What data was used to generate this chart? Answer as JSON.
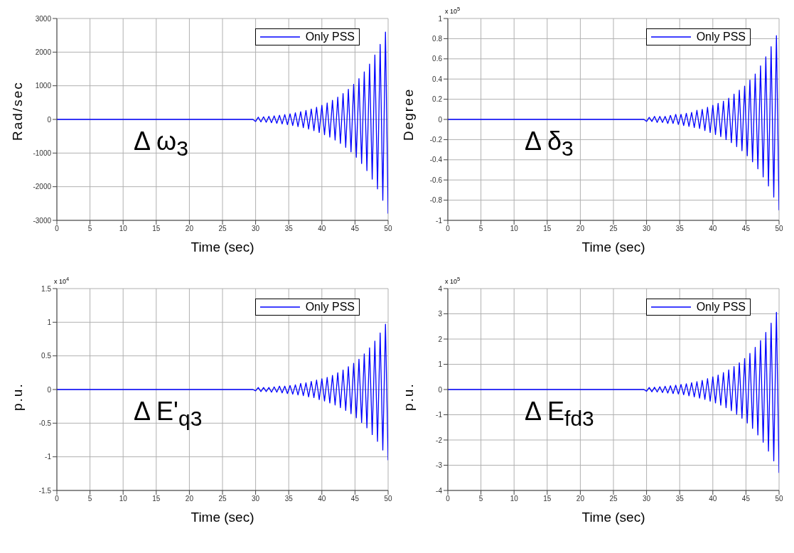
{
  "chart_data": [
    {
      "type": "line",
      "xlabel": "Time (sec)",
      "ylabel": "Rad/sec",
      "annotations": [
        "Δ ω$_{3}$"
      ],
      "x": [
        0,
        29.6,
        30,
        30.4,
        30.8,
        31.2,
        31.6,
        32,
        32.4,
        32.8,
        33.2,
        33.6,
        34,
        34.4,
        34.8,
        35.2,
        35.6,
        36,
        36.4,
        36.8,
        37.2,
        37.6,
        38,
        38.4,
        38.8,
        39.2,
        39.6,
        40,
        40.4,
        40.8,
        41.2,
        41.6,
        42,
        42.4,
        42.8,
        43.2,
        43.6,
        44,
        44.4,
        44.8,
        45.2,
        45.6,
        46,
        46.4,
        46.8,
        47.2,
        47.6,
        48,
        48.4,
        48.8,
        49.2,
        49.6,
        50
      ],
      "series": [
        {
          "name": "Only PSS",
          "color": "#0000ff",
          "values": [
            0,
            0,
            -62,
            67,
            -73,
            78,
            -84,
            92,
            -98,
            106,
            -115,
            123,
            -134,
            146,
            -157,
            168,
            -182,
            196,
            -213,
            230,
            -246,
            266,
            -286,
            308,
            -333,
            361,
            -389,
            420,
            -454,
            487,
            -526,
            568,
            -613,
            661,
            -714,
            770,
            -829,
            896,
            -966,
            1042,
            -1126,
            1212,
            -1310,
            1414,
            -1523,
            1644,
            -1775,
            1915,
            -2066,
            2229,
            -2405,
            2596,
            -2800
          ]
        }
      ],
      "xlim": [
        0,
        50
      ],
      "xticks": [
        0,
        5,
        10,
        15,
        20,
        25,
        30,
        35,
        40,
        45,
        50
      ],
      "ylim": [
        -3000,
        3000
      ],
      "yticks": [
        -3000,
        -2000,
        -1000,
        0,
        1000,
        2000,
        3000
      ],
      "grid": true,
      "legend": "top right",
      "line_style": "solid"
    },
    {
      "type": "line",
      "xlabel": "Time (sec)",
      "ylabel": "Degree",
      "annotations": [
        "Δ δ$_{3}$",
        "x 10$^{5}$"
      ],
      "x": [
        0,
        29.6,
        30,
        30.4,
        30.8,
        31.2,
        31.6,
        32,
        32.4,
        32.8,
        33.2,
        33.6,
        34,
        34.4,
        34.8,
        35.2,
        35.6,
        36,
        36.4,
        36.8,
        37.2,
        37.6,
        38,
        38.4,
        38.8,
        39.2,
        39.6,
        40,
        40.4,
        40.8,
        41.2,
        41.6,
        42,
        42.4,
        42.8,
        43.2,
        43.6,
        44,
        44.4,
        44.8,
        45.2,
        45.6,
        46,
        46.4,
        46.8,
        47.2,
        47.6,
        48,
        48.4,
        48.8,
        49.2,
        49.6,
        50
      ],
      "series": [
        {
          "name": "Only PSS",
          "color": "#0000ff",
          "values": [
            0,
            0,
            -0.02,
            0.02,
            -0.02,
            0.03,
            -0.03,
            0.03,
            -0.03,
            0.03,
            -0.04,
            0.04,
            -0.04,
            0.05,
            -0.05,
            0.05,
            -0.06,
            0.06,
            -0.07,
            0.07,
            -0.08,
            0.09,
            -0.09,
            0.1,
            -0.11,
            0.12,
            -0.13,
            0.14,
            -0.15,
            0.16,
            -0.17,
            0.18,
            -0.2,
            0.21,
            -0.23,
            0.25,
            -0.27,
            0.29,
            -0.31,
            0.33,
            -0.36,
            0.39,
            -0.42,
            0.45,
            -0.49,
            0.53,
            -0.57,
            0.62,
            -0.66,
            0.72,
            -0.77,
            0.83,
            -0.9
          ]
        }
      ],
      "xlim": [
        0,
        50
      ],
      "xticks": [
        0,
        5,
        10,
        15,
        20,
        25,
        30,
        35,
        40,
        45,
        50
      ],
      "ylim": [
        -1,
        1
      ],
      "yticks": [
        -1,
        -0.8,
        -0.6,
        -0.4,
        -0.2,
        0,
        0.2,
        0.4,
        0.6,
        0.8,
        1
      ],
      "grid": true,
      "legend": "top right",
      "line_style": "solid"
    },
    {
      "type": "line",
      "xlabel": "Time (sec)",
      "ylabel": "p.u.",
      "annotations": [
        "Δ E'$_{q3}$",
        "x 10$^{4}$"
      ],
      "x": [
        0,
        29.6,
        30,
        30.4,
        30.8,
        31.2,
        31.6,
        32,
        32.4,
        32.8,
        33.2,
        33.6,
        34,
        34.4,
        34.8,
        35.2,
        35.6,
        36,
        36.4,
        36.8,
        37.2,
        37.6,
        38,
        38.4,
        38.8,
        39.2,
        39.6,
        40,
        40.4,
        40.8,
        41.2,
        41.6,
        42,
        42.4,
        42.8,
        43.2,
        43.6,
        44,
        44.4,
        44.8,
        45.2,
        45.6,
        46,
        46.4,
        46.8,
        47.2,
        47.6,
        48,
        48.4,
        48.8,
        49.2,
        49.6,
        50
      ],
      "series": [
        {
          "name": "Only PSS",
          "color": "#0000ff",
          "values": [
            0,
            0,
            -0.02,
            0.03,
            -0.03,
            0.03,
            -0.03,
            0.03,
            -0.04,
            0.04,
            -0.04,
            0.05,
            -0.05,
            0.05,
            -0.06,
            0.06,
            -0.07,
            0.07,
            -0.08,
            0.09,
            -0.09,
            0.1,
            -0.11,
            0.12,
            -0.12,
            0.14,
            -0.15,
            0.16,
            -0.17,
            0.18,
            -0.2,
            0.21,
            -0.23,
            0.25,
            -0.27,
            0.29,
            -0.31,
            0.34,
            -0.36,
            0.39,
            -0.42,
            0.45,
            -0.49,
            0.53,
            -0.57,
            0.62,
            -0.67,
            0.72,
            -0.77,
            0.84,
            -0.9,
            0.97,
            -1.05
          ]
        }
      ],
      "xlim": [
        0,
        50
      ],
      "xticks": [
        0,
        5,
        10,
        15,
        20,
        25,
        30,
        35,
        40,
        45,
        50
      ],
      "ylim": [
        -1.5,
        1.5
      ],
      "yticks": [
        -1.5,
        -1,
        -0.5,
        0,
        0.5,
        1,
        1.5
      ],
      "grid": true,
      "legend": "top right",
      "line_style": "solid"
    },
    {
      "type": "line",
      "xlabel": "Time (sec)",
      "ylabel": "p.u.",
      "annotations": [
        "Δ E$_{fd3}$",
        "x 10$^{5}$"
      ],
      "x": [
        0,
        29.6,
        30,
        30.4,
        30.8,
        31.2,
        31.6,
        32,
        32.4,
        32.8,
        33.2,
        33.6,
        34,
        34.4,
        34.8,
        35.2,
        35.6,
        36,
        36.4,
        36.8,
        37.2,
        37.6,
        38,
        38.4,
        38.8,
        39.2,
        39.6,
        40,
        40.4,
        40.8,
        41.2,
        41.6,
        42,
        42.4,
        42.8,
        43.2,
        43.6,
        44,
        44.4,
        44.8,
        45.2,
        45.6,
        46,
        46.4,
        46.8,
        47.2,
        47.6,
        48,
        48.4,
        48.8,
        49.2,
        49.6,
        50
      ],
      "series": [
        {
          "name": "Only PSS",
          "color": "#0000ff",
          "values": [
            0,
            0,
            -0.07,
            0.08,
            -0.09,
            0.09,
            -0.1,
            0.11,
            -0.12,
            0.13,
            -0.14,
            0.15,
            -0.16,
            0.17,
            -0.18,
            0.2,
            -0.21,
            0.23,
            -0.25,
            0.27,
            -0.29,
            0.31,
            -0.34,
            0.36,
            -0.39,
            0.43,
            -0.46,
            0.5,
            -0.53,
            0.57,
            -0.62,
            0.67,
            -0.72,
            0.78,
            -0.84,
            0.91,
            -0.98,
            1.06,
            -1.14,
            1.23,
            -1.33,
            1.43,
            -1.54,
            1.67,
            -1.8,
            1.94,
            -2.09,
            2.26,
            -2.44,
            2.63,
            -2.83,
            3.06,
            -3.3
          ]
        }
      ],
      "xlim": [
        0,
        50
      ],
      "xticks": [
        0,
        5,
        10,
        15,
        20,
        25,
        30,
        35,
        40,
        45,
        50
      ],
      "ylim": [
        -4,
        4
      ],
      "yticks": [
        -4,
        -3,
        -2,
        -1,
        0,
        1,
        2,
        3,
        4
      ],
      "grid": true,
      "legend": "top right",
      "line_style": "solid"
    }
  ]
}
